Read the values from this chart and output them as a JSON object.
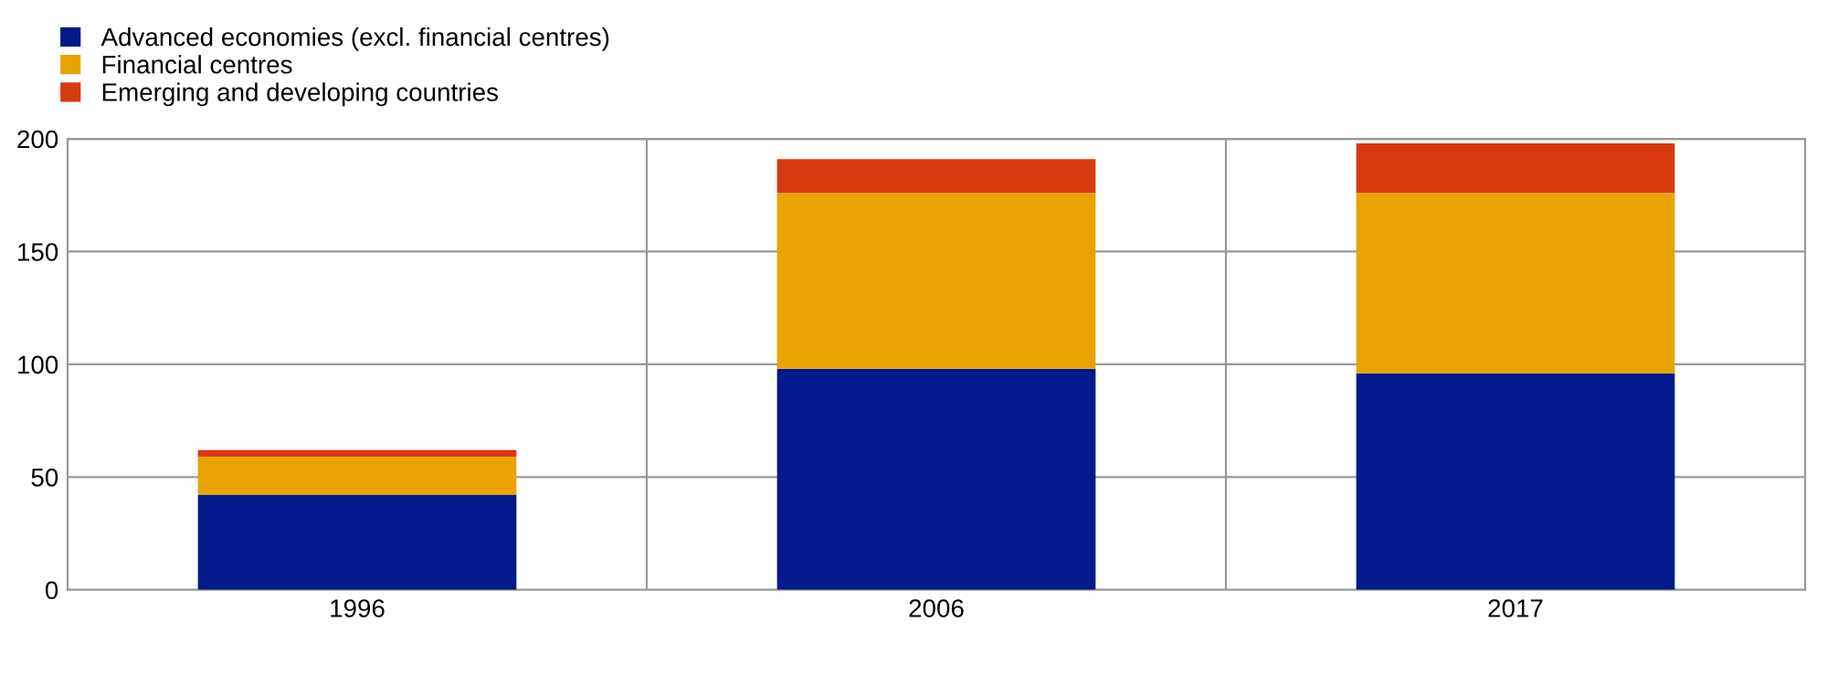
{
  "chart_data": {
    "type": "bar",
    "stacked": true,
    "categories": [
      "1996",
      "2006",
      "2017"
    ],
    "series": [
      {
        "name": "Advanced economies (excl. financial centres)",
        "color": "#001a8c",
        "values": [
          42,
          98,
          96
        ]
      },
      {
        "name": "Financial centres",
        "color": "#e8a300",
        "values": [
          17,
          78,
          80
        ]
      },
      {
        "name": "Emerging and developing countries",
        "color": "#d83a10",
        "values": [
          3,
          15,
          22
        ]
      }
    ],
    "ylim": [
      0,
      200
    ],
    "yticks": [
      0,
      50,
      100,
      150,
      200
    ],
    "grid": true,
    "legend": "top left"
  }
}
